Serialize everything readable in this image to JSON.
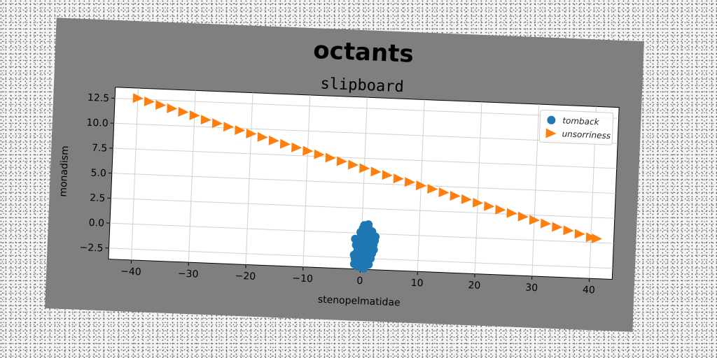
{
  "figure": {
    "suptitle": "octants",
    "background_color": "#7f7f7f"
  },
  "chart_data": {
    "type": "scatter",
    "title": "slipboard",
    "xlabel": "stenopelmatidae",
    "ylabel": "monadism",
    "xlim": [
      -44,
      44
    ],
    "ylim": [
      -3.6,
      13.6
    ],
    "xticks": [
      -40,
      -30,
      -20,
      -10,
      0,
      10,
      20,
      30,
      40
    ],
    "xtick_labels": [
      "−40",
      "−30",
      "−20",
      "−10",
      "0",
      "10",
      "20",
      "30",
      "40"
    ],
    "yticks": [
      -2.5,
      0.0,
      2.5,
      5.0,
      7.5,
      10.0,
      12.5
    ],
    "ytick_labels": [
      "−2.5",
      "0.0",
      "2.5",
      "5.0",
      "7.5",
      "10.0",
      "12.5"
    ],
    "grid": true,
    "legend_position": "upper-right",
    "series": [
      {
        "name": "tomback",
        "marker": "circle",
        "color": "#1f77b4",
        "points": [
          [
            0.4,
            0.8
          ],
          [
            0.9,
            0.6
          ],
          [
            1.2,
            0.5
          ],
          [
            1.8,
            0.2
          ],
          [
            0.5,
            0.3
          ],
          [
            -0.2,
            0.1
          ],
          [
            0.6,
            0.0
          ],
          [
            1.4,
            -0.1
          ],
          [
            2.0,
            -0.2
          ],
          [
            2.4,
            -0.3
          ],
          [
            -0.1,
            -0.2
          ],
          [
            0.3,
            -0.4
          ],
          [
            1.0,
            -0.5
          ],
          [
            1.7,
            -0.6
          ],
          [
            2.3,
            -0.7
          ],
          [
            -0.3,
            -0.5
          ],
          [
            0.1,
            -0.8
          ],
          [
            0.8,
            -0.9
          ],
          [
            1.5,
            -1.0
          ],
          [
            2.1,
            -1.1
          ],
          [
            -0.4,
            -1.0
          ],
          [
            0.2,
            -1.3
          ],
          [
            0.9,
            -1.4
          ],
          [
            1.6,
            -1.5
          ],
          [
            2.2,
            -1.6
          ],
          [
            -0.6,
            -1.5
          ],
          [
            0.0,
            -1.7
          ],
          [
            0.7,
            -1.8
          ],
          [
            1.3,
            -1.9
          ],
          [
            1.9,
            -2.0
          ],
          [
            -0.8,
            -2.0
          ],
          [
            -0.2,
            -2.2
          ],
          [
            0.5,
            -2.3
          ],
          [
            1.1,
            -2.4
          ],
          [
            1.7,
            -2.5
          ],
          [
            -1.0,
            -2.6
          ],
          [
            -0.4,
            -2.8
          ],
          [
            0.3,
            -2.9
          ],
          [
            0.9,
            -3.0
          ],
          [
            1.4,
            -3.1
          ],
          [
            -1.1,
            -3.1
          ],
          [
            -0.6,
            -3.3
          ],
          [
            0.0,
            -3.4
          ],
          [
            0.6,
            -3.5
          ],
          [
            -1.2,
            -2.2
          ],
          [
            -0.9,
            -1.2
          ],
          [
            -1.1,
            -0.6
          ],
          [
            1.1,
            0.9
          ],
          [
            0.2,
            0.5
          ],
          [
            0.8,
            -0.2
          ]
        ]
      },
      {
        "name": "unsorriness",
        "marker": "triangle-right",
        "color": "#ff7f0e",
        "points": [
          [
            -40.0,
            12.6
          ],
          [
            -38.0,
            12.3
          ],
          [
            -36.0,
            12.0
          ],
          [
            -34.0,
            11.7
          ],
          [
            -32.0,
            11.4
          ],
          [
            -30.0,
            11.1
          ],
          [
            -28.0,
            10.7
          ],
          [
            -26.0,
            10.4
          ],
          [
            -24.0,
            10.1
          ],
          [
            -22.0,
            9.8
          ],
          [
            -20.0,
            9.5
          ],
          [
            -18.0,
            9.2
          ],
          [
            -16.0,
            8.9
          ],
          [
            -14.0,
            8.6
          ],
          [
            -12.0,
            8.3
          ],
          [
            -10.0,
            8.0
          ],
          [
            -8.0,
            7.7
          ],
          [
            -6.0,
            7.4
          ],
          [
            -4.0,
            7.1
          ],
          [
            -2.0,
            6.8
          ],
          [
            0.0,
            6.5
          ],
          [
            2.0,
            6.2
          ],
          [
            4.0,
            5.9
          ],
          [
            6.0,
            5.6
          ],
          [
            8.0,
            5.3
          ],
          [
            10.0,
            5.0
          ],
          [
            12.0,
            4.7
          ],
          [
            14.0,
            4.4
          ],
          [
            16.0,
            4.1
          ],
          [
            18.0,
            3.8
          ],
          [
            20.0,
            3.5
          ],
          [
            22.0,
            3.2
          ],
          [
            24.0,
            2.9
          ],
          [
            26.0,
            2.6
          ],
          [
            28.0,
            2.3
          ],
          [
            30.0,
            2.0
          ],
          [
            32.0,
            1.7
          ],
          [
            34.0,
            1.4
          ],
          [
            36.0,
            1.1
          ],
          [
            38.0,
            0.8
          ],
          [
            40.0,
            0.5
          ],
          [
            41.0,
            0.4
          ]
        ]
      }
    ]
  }
}
